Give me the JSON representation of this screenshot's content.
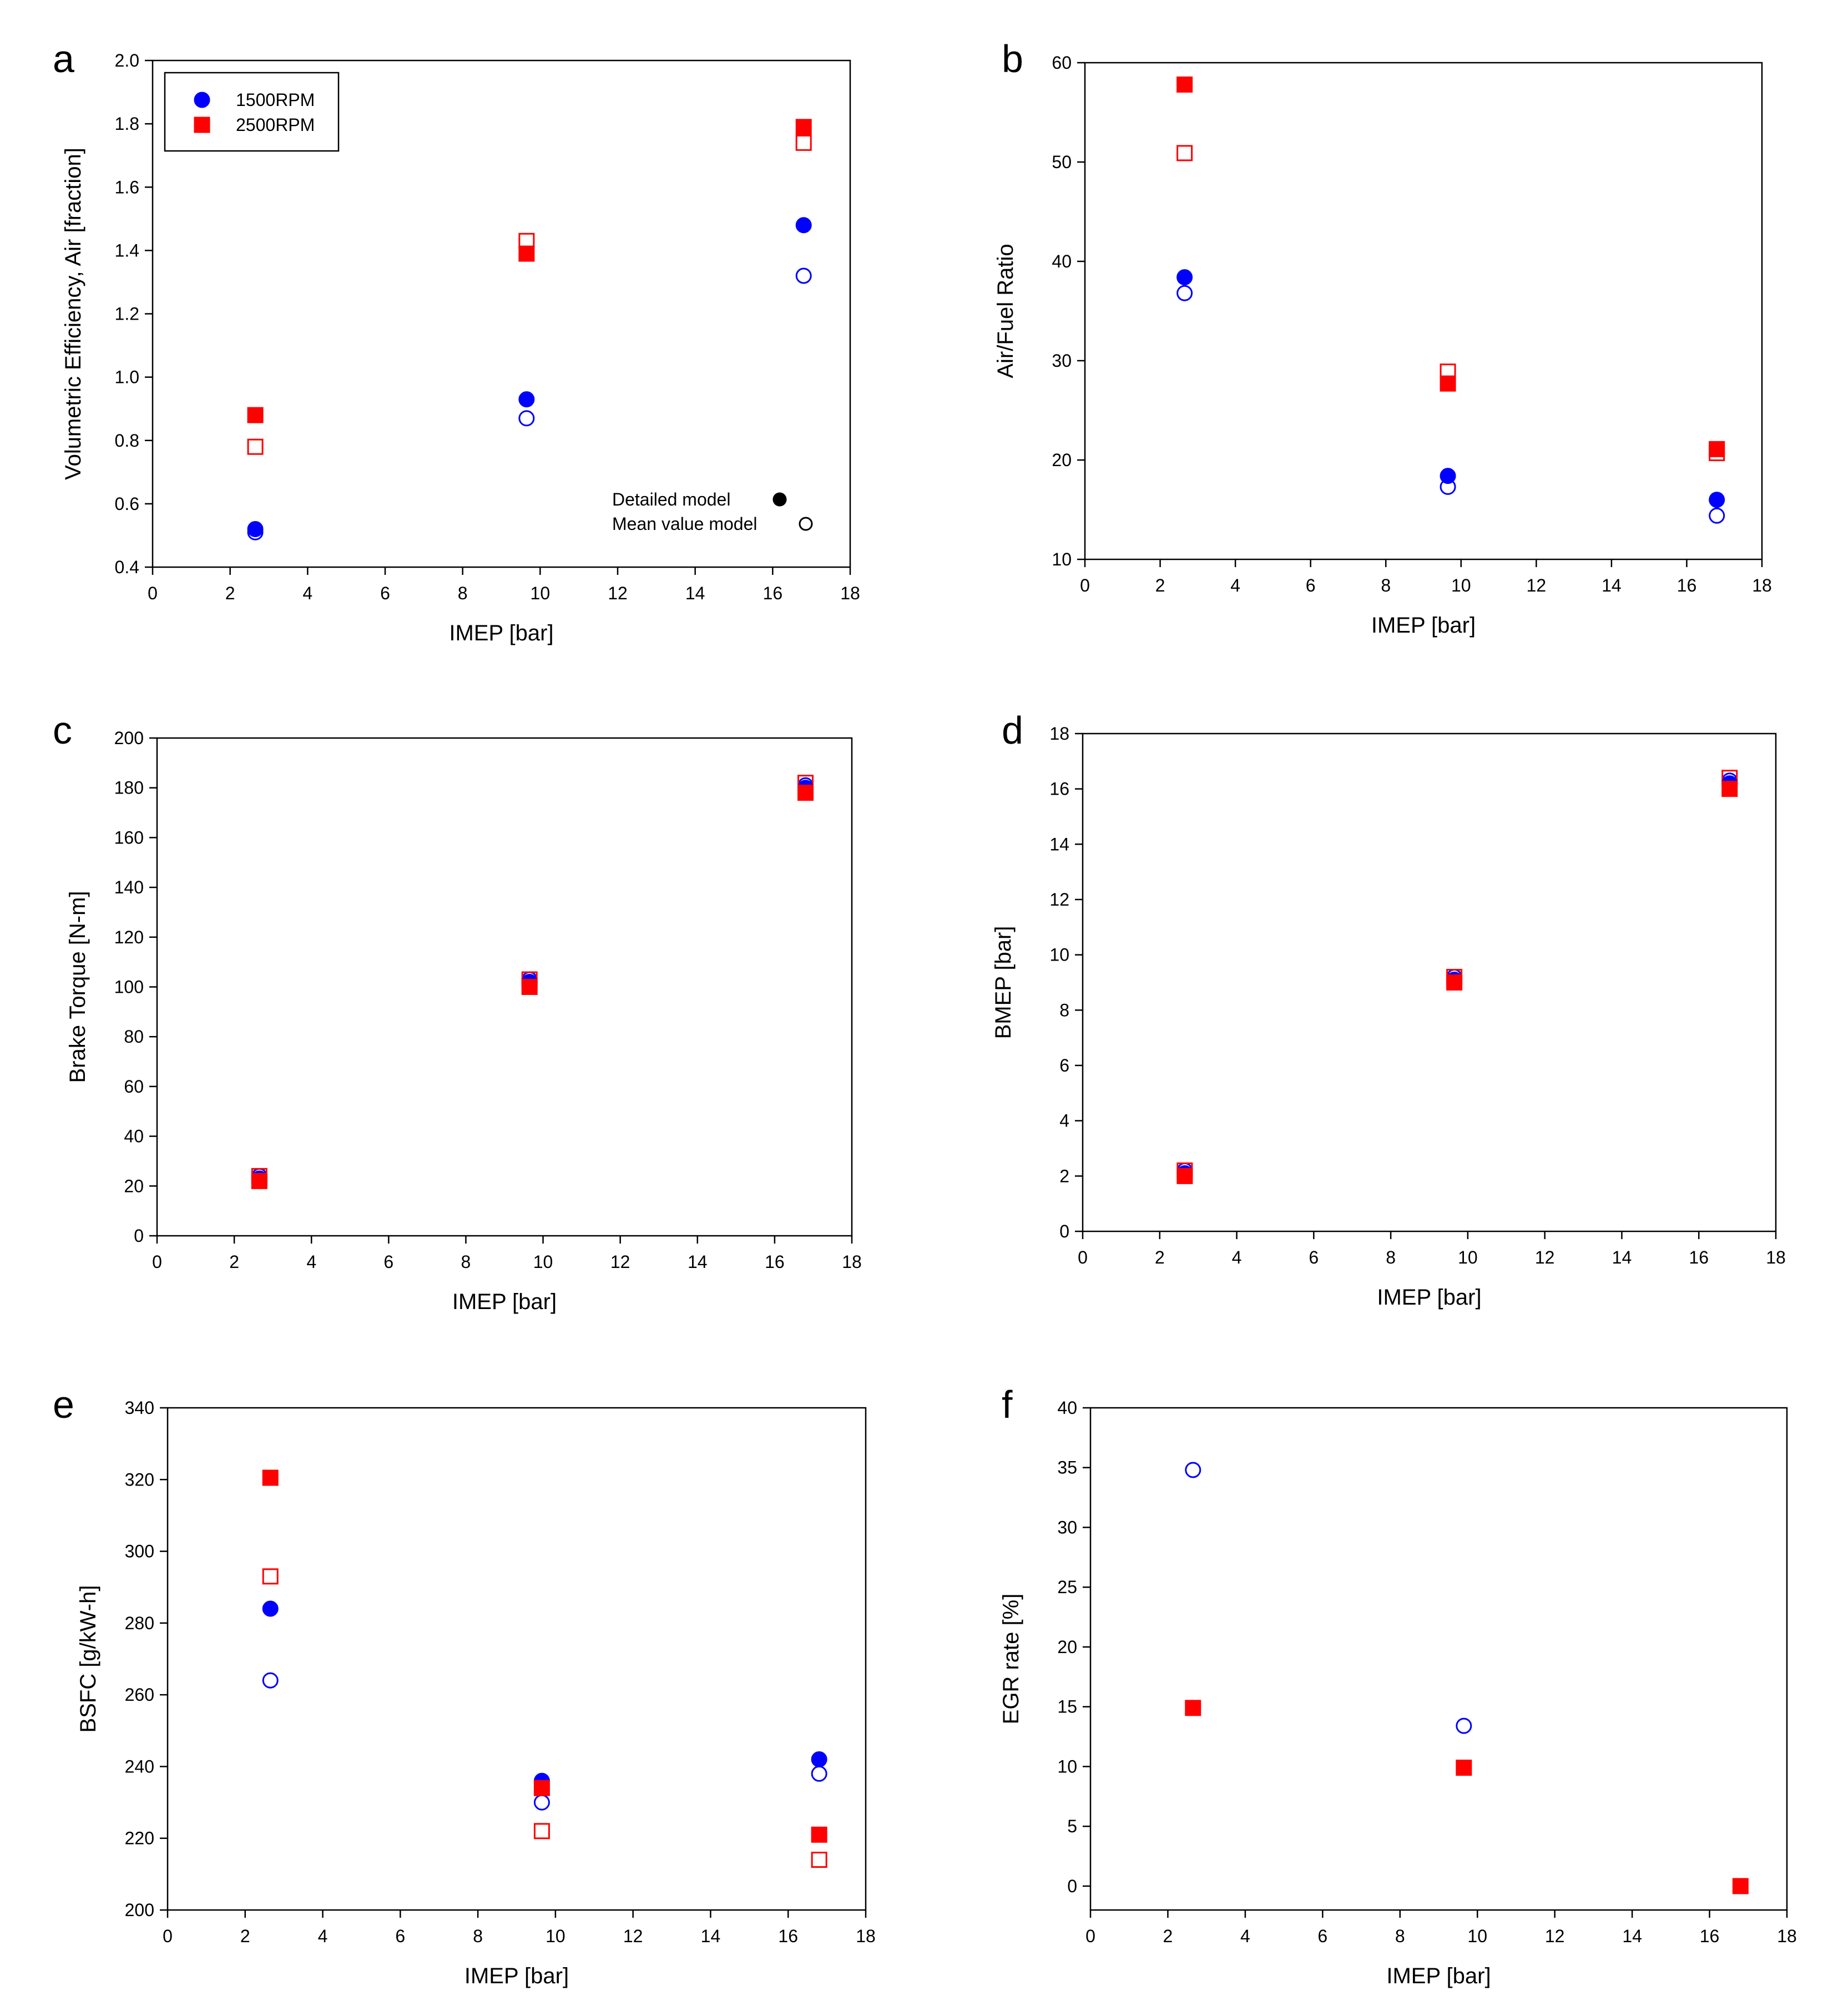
{
  "colors": {
    "blue": "#0000ff",
    "red": "#ff0000",
    "black": "#000000"
  },
  "legends": {
    "speed": [
      {
        "label": "1500RPM",
        "color": "#0000ff",
        "marker": "circle"
      },
      {
        "label": "2500RPM",
        "color": "#ff0000",
        "marker": "square"
      }
    ],
    "model": [
      {
        "label": "Detailed model",
        "marker": "filled-circle"
      },
      {
        "label": "Mean value model",
        "marker": "open-circle"
      }
    ]
  },
  "chart_data": [
    {
      "panel": "a",
      "type": "scatter",
      "xlabel": "IMEP [bar]",
      "ylabel": "Volumetric Efficiency, Air [fraction]",
      "xlim": [
        0,
        18
      ],
      "ylim": [
        0.4,
        2.0
      ],
      "xticks": [
        0,
        2,
        4,
        6,
        8,
        10,
        12,
        14,
        16,
        18
      ],
      "yticks": [
        "0.4",
        "0.6",
        "0.8",
        "1.0",
        "1.2",
        "1.4",
        "1.6",
        "1.8",
        "2.0"
      ],
      "legend": "speed-top-left+model-bottom-right",
      "series": [
        {
          "rpm": "1500RPM",
          "model": "Detailed model",
          "x": [
            2.65,
            9.65,
            16.8
          ],
          "y": [
            0.52,
            0.93,
            1.48
          ]
        },
        {
          "rpm": "1500RPM",
          "model": "Mean value model",
          "x": [
            2.65,
            9.65,
            16.8
          ],
          "y": [
            0.51,
            0.87,
            1.32
          ]
        },
        {
          "rpm": "2500RPM",
          "model": "Detailed model",
          "x": [
            2.65,
            9.65,
            16.8
          ],
          "y": [
            0.88,
            1.39,
            1.79
          ]
        },
        {
          "rpm": "2500RPM",
          "model": "Mean value model",
          "x": [
            2.65,
            9.65,
            16.8
          ],
          "y": [
            0.78,
            1.43,
            1.74
          ]
        }
      ]
    },
    {
      "panel": "b",
      "type": "scatter",
      "xlabel": "IMEP [bar]",
      "ylabel": "Air/Fuel Ratio",
      "xlim": [
        0,
        18
      ],
      "ylim": [
        10,
        60
      ],
      "xticks": [
        0,
        2,
        4,
        6,
        8,
        10,
        12,
        14,
        16,
        18
      ],
      "yticks": [
        "10",
        "20",
        "30",
        "40",
        "50",
        "60"
      ],
      "series": [
        {
          "rpm": "1500RPM",
          "model": "Detailed model",
          "x": [
            2.65,
            9.65,
            16.8
          ],
          "y": [
            38.4,
            18.4,
            16.0
          ]
        },
        {
          "rpm": "1500RPM",
          "model": "Mean value model",
          "x": [
            2.65,
            9.65,
            16.8
          ],
          "y": [
            36.8,
            17.3,
            14.4
          ]
        },
        {
          "rpm": "2500RPM",
          "model": "Detailed model",
          "x": [
            2.65,
            9.65,
            16.8
          ],
          "y": [
            57.8,
            27.7,
            21.1
          ]
        },
        {
          "rpm": "2500RPM",
          "model": "Mean value model",
          "x": [
            2.65,
            9.65,
            16.8
          ],
          "y": [
            50.9,
            28.9,
            20.7
          ]
        }
      ]
    },
    {
      "panel": "c",
      "type": "scatter",
      "xlabel": "IMEP [bar]",
      "ylabel": "Brake Torque [N-m]",
      "xlim": [
        0,
        18
      ],
      "ylim": [
        0,
        200
      ],
      "xticks": [
        0,
        2,
        4,
        6,
        8,
        10,
        12,
        14,
        16,
        18
      ],
      "yticks": [
        "0",
        "20",
        "40",
        "60",
        "80",
        "100",
        "120",
        "140",
        "160",
        "180",
        "200"
      ],
      "series": [
        {
          "rpm": "1500RPM",
          "model": "Detailed model",
          "x": [
            2.65,
            9.65,
            16.8
          ],
          "y": [
            23,
            102,
            180
          ]
        },
        {
          "rpm": "1500RPM",
          "model": "Mean value model",
          "x": [
            2.65,
            9.65,
            16.8
          ],
          "y": [
            24,
            103,
            181
          ]
        },
        {
          "rpm": "2500RPM",
          "model": "Detailed model",
          "x": [
            2.65,
            9.65,
            16.8
          ],
          "y": [
            22,
            100,
            178
          ]
        },
        {
          "rpm": "2500RPM",
          "model": "Mean value model",
          "x": [
            2.65,
            9.65,
            16.8
          ],
          "y": [
            24,
            103,
            182
          ]
        }
      ]
    },
    {
      "panel": "d",
      "type": "scatter",
      "xlabel": "IMEP [bar]",
      "ylabel": "BMEP [bar]",
      "xlim": [
        0,
        18
      ],
      "ylim": [
        0,
        18
      ],
      "xticks": [
        0,
        2,
        4,
        6,
        8,
        10,
        12,
        14,
        16,
        18
      ],
      "yticks": [
        "0",
        "2",
        "4",
        "6",
        "8",
        "10",
        "12",
        "14",
        "16",
        "18"
      ],
      "series": [
        {
          "rpm": "1500RPM",
          "model": "Detailed model",
          "x": [
            2.65,
            9.65,
            16.8
          ],
          "y": [
            2.1,
            9.1,
            16.2
          ]
        },
        {
          "rpm": "1500RPM",
          "model": "Mean value model",
          "x": [
            2.65,
            9.65,
            16.8
          ],
          "y": [
            2.2,
            9.2,
            16.3
          ]
        },
        {
          "rpm": "2500RPM",
          "model": "Detailed model",
          "x": [
            2.65,
            9.65,
            16.8
          ],
          "y": [
            2.0,
            9.0,
            16.0
          ]
        },
        {
          "rpm": "2500RPM",
          "model": "Mean value model",
          "x": [
            2.65,
            9.65,
            16.8
          ],
          "y": [
            2.2,
            9.2,
            16.4
          ]
        }
      ]
    },
    {
      "panel": "e",
      "type": "scatter",
      "xlabel": "IMEP [bar]",
      "ylabel": "BSFC [g/kW-h]",
      "xlim": [
        0,
        18
      ],
      "ylim": [
        200,
        340
      ],
      "xticks": [
        0,
        2,
        4,
        6,
        8,
        10,
        12,
        14,
        16,
        18
      ],
      "yticks": [
        "200",
        "220",
        "240",
        "260",
        "280",
        "300",
        "320",
        "340"
      ],
      "series": [
        {
          "rpm": "1500RPM",
          "model": "Detailed model",
          "x": [
            2.65,
            9.65,
            16.8
          ],
          "y": [
            284,
            236,
            242
          ]
        },
        {
          "rpm": "1500RPM",
          "model": "Mean value model",
          "x": [
            2.65,
            9.65,
            16.8
          ],
          "y": [
            264,
            230,
            238
          ]
        },
        {
          "rpm": "2500RPM",
          "model": "Detailed model",
          "x": [
            2.65,
            9.65,
            16.8
          ],
          "y": [
            320.5,
            234,
            221
          ]
        },
        {
          "rpm": "2500RPM",
          "model": "Mean value model",
          "x": [
            2.65,
            9.65,
            16.8
          ],
          "y": [
            293,
            222,
            214
          ]
        }
      ]
    },
    {
      "panel": "f",
      "type": "scatter",
      "xlabel": "IMEP [bar]",
      "ylabel": "EGR rate [%]",
      "xlim": [
        0,
        18
      ],
      "ylim": [
        -2,
        40
      ],
      "xticks": [
        0,
        2,
        4,
        6,
        8,
        10,
        12,
        14,
        16,
        18
      ],
      "yticks": [
        "0",
        "5",
        "10",
        "15",
        "20",
        "25",
        "30",
        "35",
        "40"
      ],
      "series": [
        {
          "rpm": "1500RPM",
          "model": "Mean value model",
          "x": [
            2.65,
            9.65
          ],
          "y": [
            34.8,
            13.4
          ]
        },
        {
          "rpm": "2500RPM",
          "model": "Detailed model",
          "x": [
            2.65,
            9.65,
            16.8
          ],
          "y": [
            14.9,
            9.9,
            0
          ]
        }
      ]
    }
  ]
}
